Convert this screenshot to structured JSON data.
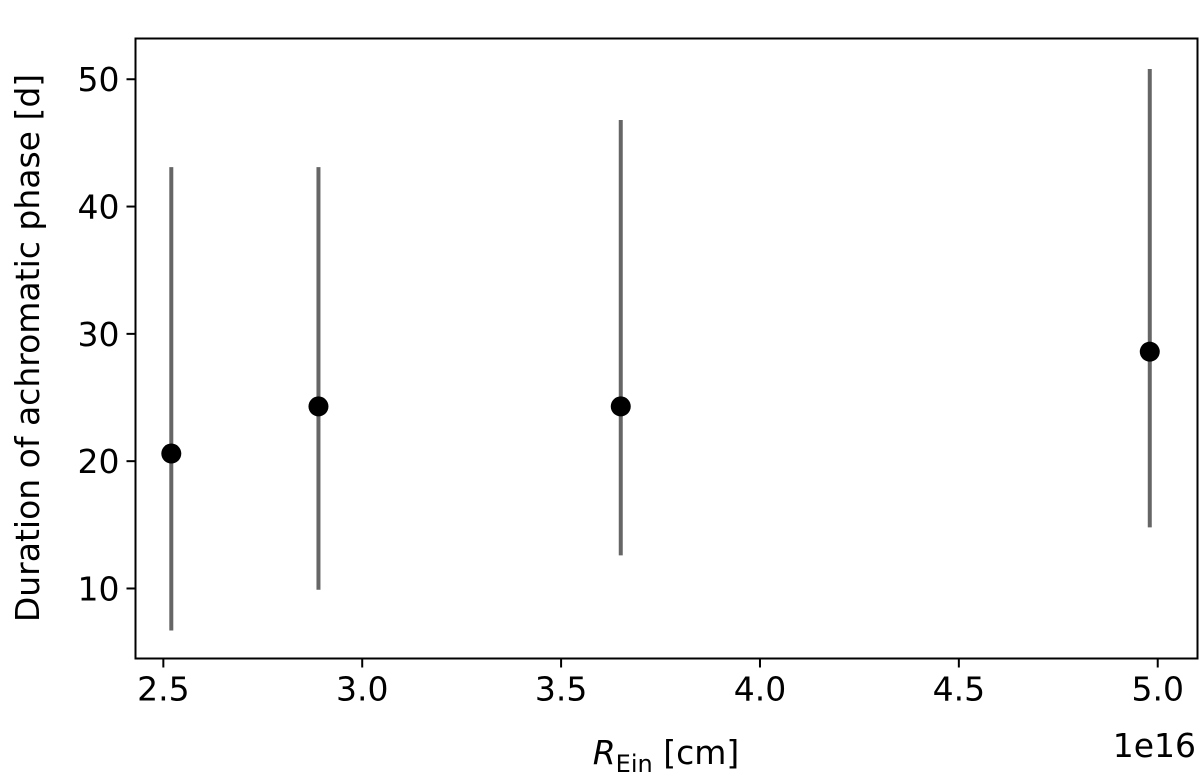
{
  "chart_data": {
    "type": "scatter",
    "title": "",
    "xlabel_symbol": "R",
    "xlabel_subscript": "Ein",
    "xlabel_unit": "[cm]",
    "ylabel": "Duration of achromatic phase [d]",
    "x_offset_label": "1e16",
    "x_scale": 1e+16,
    "xlim": [
      2.43,
      5.1
    ],
    "ylim": [
      4.5,
      53.2
    ],
    "xticks": [
      2.5,
      3.0,
      3.5,
      4.0,
      4.5,
      5.0
    ],
    "xtick_labels": [
      "2.5",
      "3.0",
      "3.5",
      "4.0",
      "4.5",
      "5.0"
    ],
    "yticks": [
      10,
      20,
      30,
      40,
      50
    ],
    "ytick_labels": [
      "10",
      "20",
      "30",
      "40",
      "50"
    ],
    "grid": false,
    "legend": "none",
    "series": [
      {
        "marker_color": "#000000",
        "errorbar_color": "#666666",
        "points": [
          {
            "x": 2.52,
            "y": 20.6,
            "ylow": 6.7,
            "yhigh": 43.1
          },
          {
            "x": 2.89,
            "y": 24.3,
            "ylow": 9.9,
            "yhigh": 43.1
          },
          {
            "x": 3.65,
            "y": 24.3,
            "ylow": 12.6,
            "yhigh": 46.8
          },
          {
            "x": 4.98,
            "y": 28.6,
            "ylow": 14.8,
            "yhigh": 50.8
          }
        ]
      }
    ]
  }
}
